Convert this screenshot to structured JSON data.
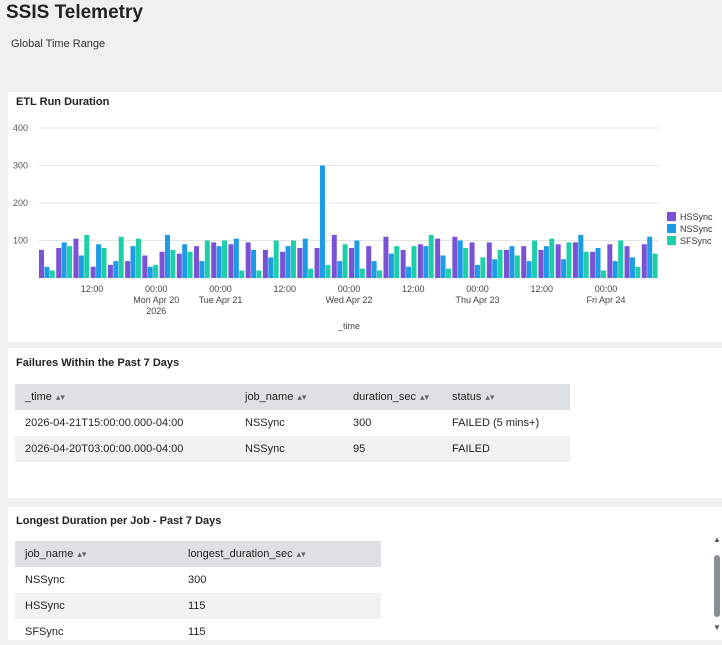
{
  "dashboard": {
    "title": "SSIS Telemetry",
    "time_range_label": "Global Time Range"
  },
  "panels": {
    "chart_title": "ETL Run Duration",
    "failures_title": "Failures Within the Past 7 Days",
    "longest_title": "Longest Duration per Job - Past 7 Days"
  },
  "colors": {
    "HSSync": "#7b52d6",
    "NSSync": "#1e9be6",
    "SFSync": "#1ccfa9"
  },
  "chart_data": {
    "type": "bar",
    "title": "ETL Run Duration",
    "xlabel": "_time",
    "ylabel": "",
    "ylim": [
      0,
      400
    ],
    "yticks": [
      "400",
      "300",
      "200",
      "100"
    ],
    "x_tick_labels": [
      [
        "12:00"
      ],
      [
        "00:00",
        "Mon Apr 20",
        "2026"
      ],
      [
        "00:00",
        "Tue Apr 21"
      ],
      [
        "12:00"
      ],
      [
        "00:00",
        "Wed Apr 22"
      ],
      [
        "12:00"
      ],
      [
        "00:00",
        "Thu Apr 23"
      ],
      [
        "12:00"
      ],
      [
        "00:00",
        "Fri Apr 24"
      ]
    ],
    "legend": [
      "HSSync",
      "NSSync",
      "SFSync"
    ],
    "legend_position": "right",
    "grid": true,
    "series": [
      {
        "name": "HSSync",
        "values": [
          75,
          80,
          105,
          30,
          35,
          45,
          60,
          70,
          65,
          85,
          95,
          90,
          95,
          75,
          70,
          80,
          80,
          115,
          80,
          85,
          110,
          75,
          90,
          105,
          110,
          95,
          95,
          75,
          85,
          75,
          90,
          95,
          70,
          90,
          85,
          90
        ]
      },
      {
        "name": "NSSync",
        "values": [
          30,
          95,
          60,
          90,
          45,
          85,
          30,
          115,
          90,
          45,
          85,
          105,
          75,
          55,
          85,
          105,
          300,
          45,
          100,
          45,
          65,
          30,
          85,
          60,
          100,
          35,
          50,
          85,
          45,
          85,
          50,
          115,
          80,
          45,
          55,
          110
        ]
      },
      {
        "name": "SFSync",
        "values": [
          20,
          85,
          115,
          80,
          110,
          105,
          35,
          75,
          70,
          100,
          100,
          20,
          20,
          100,
          100,
          25,
          35,
          90,
          25,
          20,
          85,
          85,
          115,
          25,
          80,
          55,
          75,
          60,
          100,
          105,
          95,
          70,
          20,
          100,
          30,
          65
        ]
      }
    ]
  },
  "failures_table": {
    "columns": [
      "_time",
      "job_name",
      "duration_sec",
      "status"
    ],
    "rows": [
      [
        "2026-04-21T15:00:00.000-04:00",
        "NSSync",
        "300",
        "FAILED (5 mins+)"
      ],
      [
        "2026-04-20T03:00:00.000-04:00",
        "NSSync",
        "95",
        "FAILED"
      ]
    ]
  },
  "longest_table": {
    "columns": [
      "job_name",
      "longest_duration_sec"
    ],
    "rows": [
      [
        "NSSync",
        "300"
      ],
      [
        "HSSync",
        "115"
      ],
      [
        "SFSync",
        "115"
      ]
    ]
  }
}
